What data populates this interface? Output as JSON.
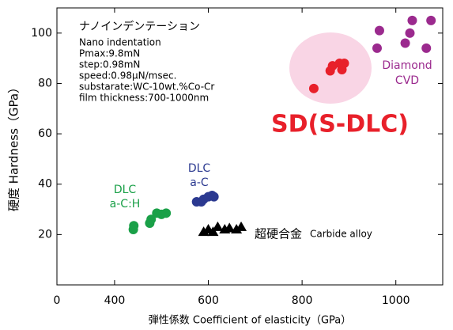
{
  "chart_data": {
    "type": "scatter",
    "xlabel": "弾性係数 Coefficient of elasticity（GPa）",
    "ylabel": "硬度 Hardness（GPa）",
    "annotations": [
      "ナノインデンテーション",
      "Nano indentation",
      "Pmax:9.8mN",
      "step:0.98mN",
      "speed:0.98μN/msec.",
      "substarate:WC-10wt.%Co-Cr",
      "film thickness:700-1000nm"
    ],
    "xlim": [
      0,
      1100
    ],
    "x_axis_break": [
      0,
      277
    ],
    "xticks": [
      0,
      400,
      600,
      800,
      1000
    ],
    "ylim": [
      0,
      110
    ],
    "yticks": [
      20,
      40,
      60,
      80,
      100
    ],
    "series": [
      {
        "label": [
          "DLC",
          "a-C:H"
        ],
        "color": "#1aa048",
        "marker": "circle",
        "x": [
          440,
          441,
          475,
          478,
          490,
          500,
          510
        ],
        "values": [
          22,
          23.5,
          24.5,
          26,
          28.5,
          28,
          28.5
        ]
      },
      {
        "label": [
          "DLC",
          "a-C"
        ],
        "color": "#2b3990",
        "marker": "circle",
        "x": [
          575,
          585,
          590,
          600,
          608,
          612
        ],
        "values": [
          33,
          33,
          34,
          35,
          35.5,
          35
        ]
      },
      {
        "label": [
          "超硬合金",
          "Carbide alloy"
        ],
        "color": "#000000",
        "marker": "triangle",
        "x": [
          590,
          600,
          610,
          620,
          635,
          645,
          660,
          670
        ],
        "values": [
          21,
          22,
          21,
          23,
          22,
          22.5,
          22,
          23
        ]
      },
      {
        "label": [
          "SD(S-DLC)"
        ],
        "color": "#e8202a",
        "marker": "circle",
        "x": [
          825,
          860,
          865,
          880,
          885,
          890
        ],
        "values": [
          78,
          85,
          87,
          88,
          85.5,
          88
        ]
      },
      {
        "label": [
          "Diamond",
          "CVD"
        ],
        "color": "#9b2a8e",
        "marker": "circle",
        "x": [
          960,
          965,
          1020,
          1030,
          1035,
          1065,
          1075
        ],
        "values": [
          94,
          101,
          96,
          100,
          105,
          94,
          105
        ]
      }
    ]
  }
}
